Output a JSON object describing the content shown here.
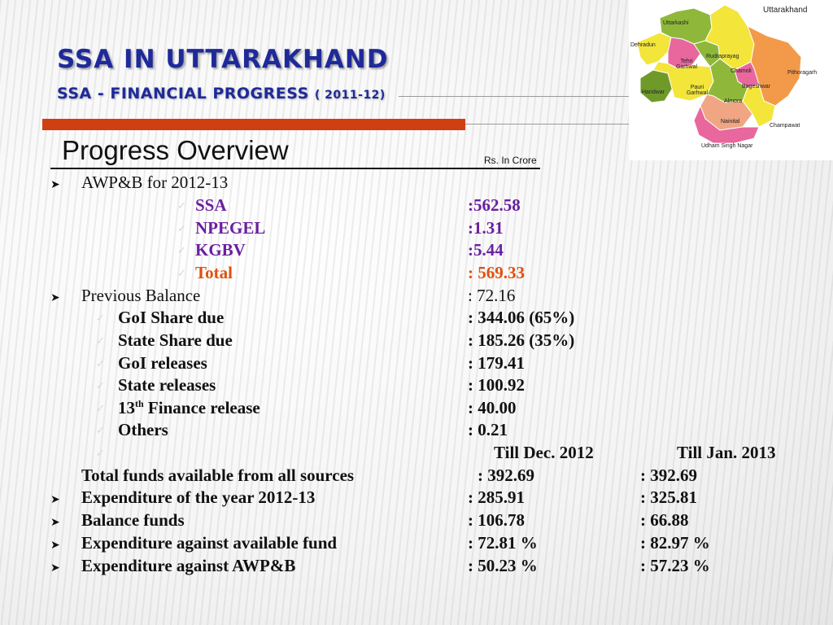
{
  "header": {
    "title": "SSA IN UTTARAKHAND",
    "subtitle_main": "SSA - FINANCIAL PROGRESS",
    "subtitle_year": "( 2011-12)"
  },
  "map": {
    "title": "Uttarakhand",
    "districts": [
      "Uttarkashi",
      "Dehradun",
      "Tehri Garhwal",
      "Rudraprayag",
      "Chamoli",
      "Pithoragarh",
      "Haridwar",
      "Pauri Garhwal",
      "Bageshwar",
      "Almora",
      "Nainital",
      "Champawat",
      "Udham Singh Nagar"
    ],
    "colors": {
      "green": "#8fb83a",
      "dark_green": "#6f9a2a",
      "yellow": "#f3e53a",
      "pink": "#e8679d",
      "orange": "#f39a4a",
      "salmon": "#f0a583"
    }
  },
  "section": {
    "heading": "Progress Overview",
    "unit": "Rs. In Crore"
  },
  "awp": {
    "label": "AWP&B for 2012-13",
    "items": [
      {
        "name": "SSA",
        "value": ":562.58"
      },
      {
        "name": "NPEGEL",
        "value": ":1.31"
      },
      {
        "name": "KGBV",
        "value": ":5.44"
      },
      {
        "name": "Total",
        "value": ": 569.33"
      }
    ]
  },
  "previous": {
    "label": "Previous Balance",
    "value": ": 72.16",
    "items": [
      {
        "name": "GoI Share due",
        "value": ":  344.06  (65%)"
      },
      {
        "name": "State Share due",
        "value": ":  185.26  (35%)"
      },
      {
        "name": "GoI releases",
        "value": ":  179.41"
      },
      {
        "name": "State releases",
        "value": ":  100.92"
      },
      {
        "name_pre": "13",
        "name_sup": "th",
        "name_post": " Finance release",
        "value": ":  40.00"
      },
      {
        "name": "Others",
        "value": ":    0.21"
      }
    ]
  },
  "periods": {
    "col1": "Till Dec. 2012",
    "col2": "Till  Jan. 2013"
  },
  "summary": [
    {
      "label": "Total funds available from all sources",
      "v1": ":  392.69",
      "v2": ":     392.69",
      "bullet": false
    },
    {
      "label": "Expenditure of the year 2012-13",
      "v1": ":  285.91",
      "v2": ":    325.81",
      "bullet": true
    },
    {
      "label": "Balance funds",
      "v1": ":  106.78",
      "v2": ":    66.88",
      "bullet": true
    },
    {
      "label": "Expenditure against available fund",
      "v1": ":   72.81 %",
      "v2": ":    82.97 %",
      "bullet": true
    },
    {
      "label": "Expenditure against AWP&B",
      "v1": ":   50.23 %",
      "v2": ":    57.23 %",
      "bullet": true
    }
  ],
  "accent": {
    "title": "#1e2a9a",
    "bar": "#cf3f12",
    "purple": "#6a1fa0",
    "orange_red": "#e2500e"
  }
}
